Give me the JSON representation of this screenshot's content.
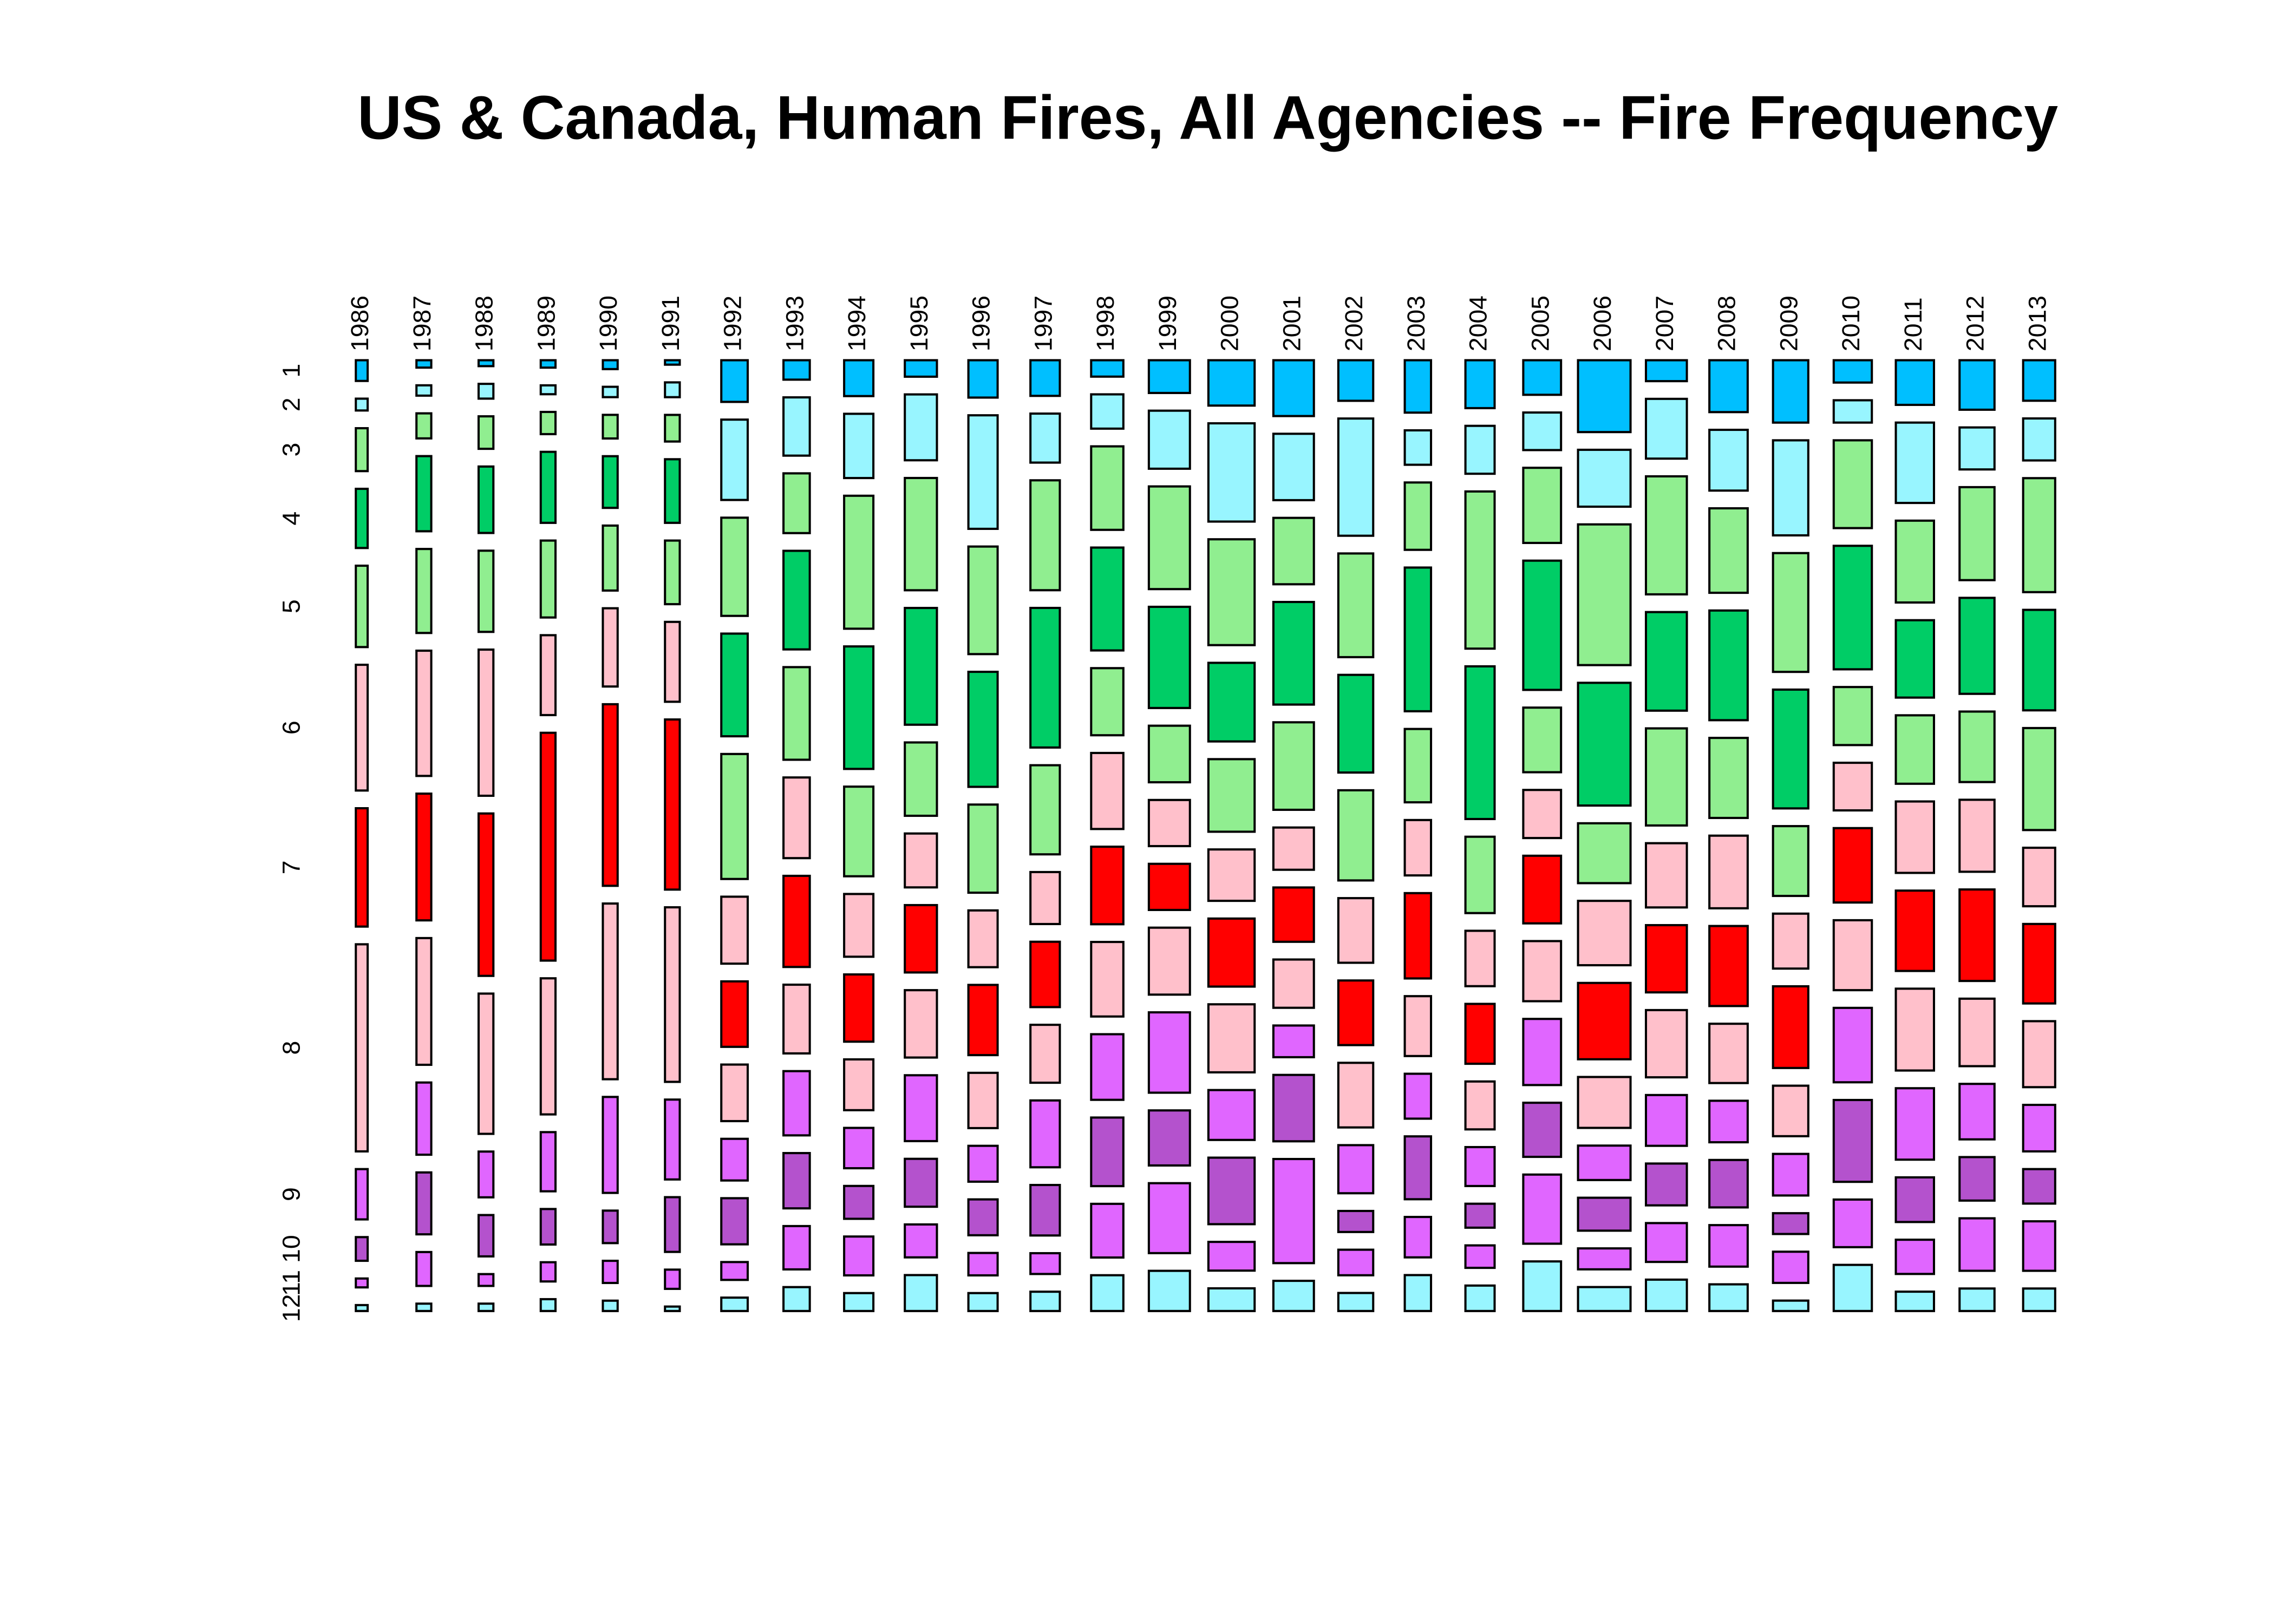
{
  "chart_data": {
    "type": "mosaic",
    "title": "US & Canada, Human Fires, All Agencies -- Fire Frequency",
    "categories": [
      "1",
      "2",
      "3",
      "4",
      "5",
      "6",
      "7",
      "8",
      "9",
      "10",
      "11",
      "12"
    ],
    "colors": [
      "#00BFFF",
      "#98F5FF",
      "#90EE90",
      "#00CD66",
      "#90EE90",
      "#FFC0CB",
      "#FF0000",
      "#FFC0CB",
      "#E066FF",
      "#B452CD",
      "#E066FF",
      "#98F5FF"
    ],
    "series": [
      {
        "name": "1986",
        "values": [
          56,
          32,
          116,
          160,
          220,
          340,
          320,
          560,
          136,
          64,
          24,
          16
        ]
      },
      {
        "name": "1987",
        "values": [
          25,
          35,
          85,
          255,
          285,
          425,
          430,
          430,
          245,
          210,
          115,
          25
        ]
      },
      {
        "name": "1988",
        "values": [
          20,
          50,
          110,
          225,
          275,
          495,
          550,
          475,
          155,
          140,
          40,
          25
        ]
      },
      {
        "name": "1989",
        "values": [
          25,
          30,
          75,
          240,
          260,
          270,
          770,
          460,
          200,
          120,
          65,
          40
        ]
      },
      {
        "name": "1990",
        "values": [
          30,
          35,
          80,
          175,
          220,
          265,
          615,
          595,
          325,
          110,
          75,
          35
        ]
      },
      {
        "name": "1991",
        "values": [
          15,
          50,
          90,
          215,
          215,
          270,
          575,
          590,
          270,
          185,
          65,
          15
        ]
      },
      {
        "name": "1992",
        "values": [
          252,
          486,
          594,
          621,
          756,
          405,
          396,
          342,
          252,
          279,
          108,
          81
        ]
      },
      {
        "name": "1993",
        "values": [
          117,
          351,
          360,
          594,
          558,
          486,
          549,
          414,
          387,
          333,
          261,
          144
        ]
      },
      {
        "name": "1994",
        "values": [
          240,
          430,
          890,
          820,
          600,
          420,
          450,
          340,
          270,
          220,
          260,
          120
        ]
      },
      {
        "name": "1995",
        "values": [
          121,
          484,
          825,
          858,
          539,
          396,
          495,
          495,
          484,
          352,
          242,
          264
        ]
      },
      {
        "name": "1996",
        "values": [
          250,
          760,
          720,
          770,
          590,
          380,
          470,
          370,
          240,
          240,
          150,
          120
        ]
      },
      {
        "name": "1997",
        "values": [
          240,
          330,
          740,
          940,
          600,
          350,
          440,
          390,
          450,
          340,
          140,
          130
        ]
      },
      {
        "name": "1998",
        "values": [
          121,
          253,
          616,
          759,
          495,
          561,
          572,
          550,
          484,
          506,
          396,
          264
        ]
      },
      {
        "name": "1999",
        "values": [
          308,
          546,
          966,
          952,
          532,
          434,
          434,
          630,
          756,
          518,
          658,
          378
        ]
      },
      {
        "name": "2000",
        "values": [
          480,
          1040,
          1120,
          832,
          768,
          544,
          720,
          720,
          528,
          704,
          304,
          240
        ]
      },
      {
        "name": "2001",
        "values": [
          518,
          616,
          616,
          952,
          812,
          392,
          504,
          448,
          294,
          616,
          966,
          280
        ]
      },
      {
        "name": "2002",
        "values": [
          324,
          936,
          828,
          780,
          720,
          516,
          516,
          516,
          384,
          168,
          204,
          144
        ]
      },
      {
        "name": "2003",
        "values": [
          315,
          207,
          405,
          864,
          441,
          333,
          513,
          360,
          270,
          378,
          243,
          216
        ]
      },
      {
        "name": "2004",
        "values": [
          320,
          320,
          1050,
          1020,
          510,
          370,
          400,
          320,
          260,
          160,
          150,
          170
        ]
      },
      {
        "name": "2005",
        "values": [
          299,
          325,
          650,
          1118,
          559,
          416,
          585,
          520,
          572,
          468,
          598,
          429
        ]
      },
      {
        "name": "2006",
        "values": [
          864,
          684,
          1692,
          1476,
          720,
          774,
          918,
          612,
          414,
          396,
          252,
          288
        ]
      },
      {
        "name": "2007",
        "values": [
          196,
          560,
          1106,
          924,
          910,
          602,
          630,
          630,
          476,
          392,
          364,
          294
        ]
      },
      {
        "name": "2008",
        "values": [
          455,
          533,
          741,
          962,
          702,
          637,
          702,
          520,
          364,
          416,
          364,
          234
        ]
      },
      {
        "name": "2009",
        "values": [
          504,
          768,
          960,
          960,
          564,
          444,
          660,
          408,
          336,
          168,
          252,
          84
        ]
      },
      {
        "name": "2010",
        "values": [
          195,
          195,
          767,
          1079,
          507,
          416,
          650,
          611,
          650,
          715,
          416,
          403
        ]
      },
      {
        "name": "2011",
        "values": [
          390,
          702,
          715,
          676,
          598,
          624,
          702,
          715,
          624,
          390,
          299,
          169
        ]
      },
      {
        "name": "2012",
        "values": [
          396,
          336,
          744,
          768,
          564,
          576,
          732,
          540,
          444,
          348,
          420,
          180
        ]
      },
      {
        "name": "2013",
        "values": [
          297,
          308,
          836,
          737,
          748,
          429,
          583,
          484,
          341,
          253,
          363,
          165
        ]
      }
    ]
  }
}
